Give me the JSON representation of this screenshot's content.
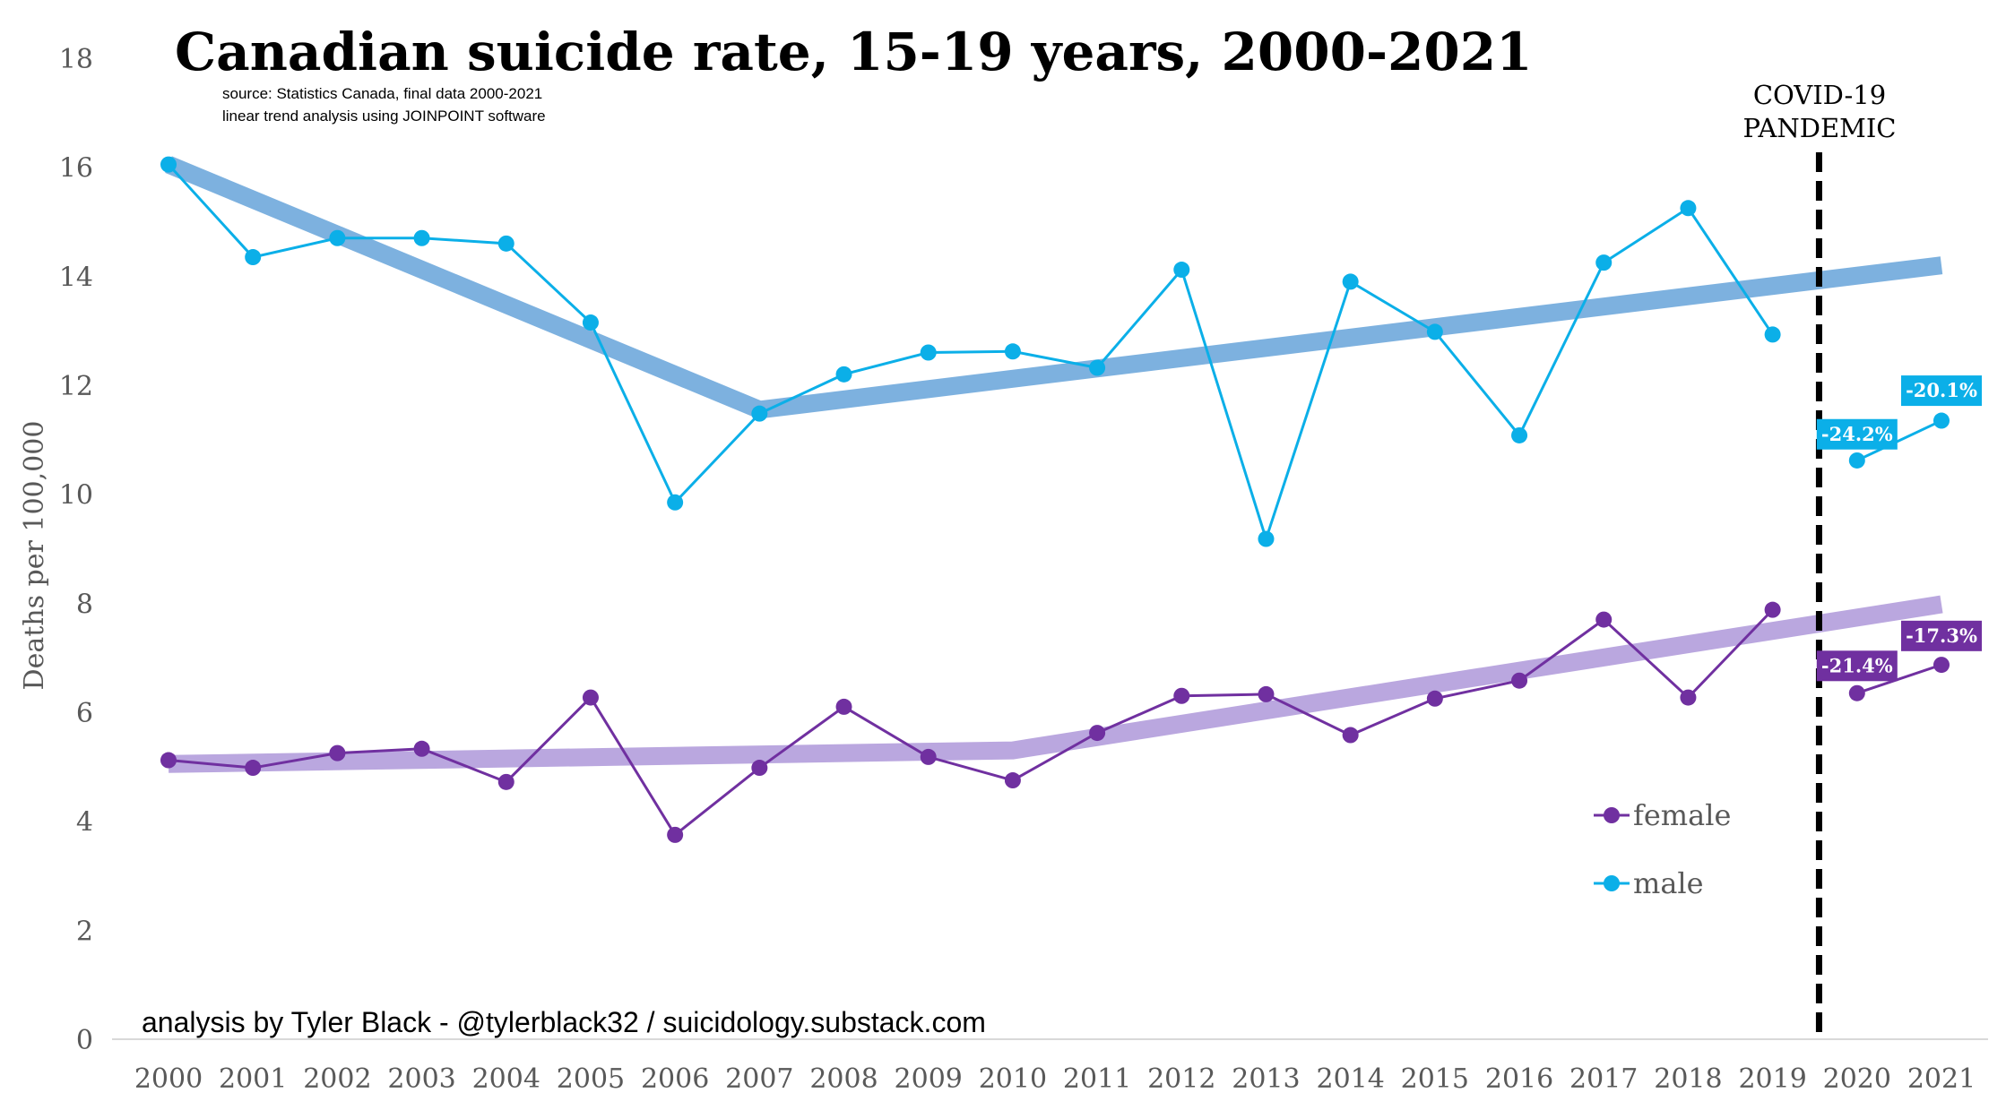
{
  "chart_data": {
    "type": "line",
    "title": "Canadian suicide rate, 15-19 years, 2000-2021",
    "source_lines": [
      "source: Statistics Canada, final data 2000-2021",
      "linear trend analysis using JOINPOINT software"
    ],
    "ylabel": "Deaths per 100,000",
    "xlabel": "",
    "ylim": [
      0,
      18
    ],
    "yticks": [
      0,
      2,
      4,
      6,
      8,
      10,
      12,
      14,
      16,
      18
    ],
    "x": [
      2000,
      2001,
      2002,
      2003,
      2004,
      2005,
      2006,
      2007,
      2008,
      2009,
      2010,
      2011,
      2012,
      2013,
      2014,
      2015,
      2016,
      2017,
      2018,
      2019,
      2020,
      2021
    ],
    "series": [
      {
        "name": "male",
        "color": "#0BAFE8",
        "values": [
          16.05,
          14.35,
          14.7,
          14.7,
          14.6,
          13.15,
          9.85,
          11.48,
          12.2,
          12.6,
          12.62,
          12.32,
          14.12,
          9.18,
          13.9,
          12.98,
          11.08,
          14.25,
          15.25,
          12.93,
          10.62,
          11.35
        ]
      },
      {
        "name": "female",
        "color": "#7030A0",
        "values": [
          5.12,
          4.98,
          5.25,
          5.33,
          4.72,
          6.27,
          3.75,
          4.98,
          6.1,
          5.18,
          4.75,
          5.62,
          6.3,
          6.33,
          5.58,
          6.25,
          6.58,
          7.7,
          6.27,
          7.88,
          6.35,
          6.87
        ]
      }
    ],
    "trends": [
      {
        "series": "male",
        "color": "#6FA8DC",
        "x": [
          2000,
          2007,
          2021
        ],
        "values": [
          16.05,
          11.55,
          14.2
        ]
      },
      {
        "series": "female",
        "color": "#B39DDB",
        "x": [
          2000,
          2010,
          2021
        ],
        "values": [
          5.05,
          5.3,
          7.98
        ]
      }
    ],
    "annotations": {
      "pandemic_label": [
        "COVID-19",
        "PANDEMIC"
      ],
      "pandemic_x": 2019.55,
      "badges": [
        {
          "text": "-24.2%",
          "x": 2020,
          "y": 11.1,
          "color": "#0BAFE8"
        },
        {
          "text": "-20.1%",
          "x": 2021,
          "y": 11.9,
          "color": "#0BAFE8"
        },
        {
          "text": "-21.4%",
          "x": 2020,
          "y": 6.85,
          "color": "#7030A0"
        },
        {
          "text": "-17.3%",
          "x": 2021,
          "y": 7.4,
          "color": "#7030A0"
        }
      ],
      "credit": "analysis by Tyler Black - @tylerblack32 / suicidology.substack.com"
    },
    "legend": {
      "placement": "bottom-right",
      "entries": [
        "female",
        "male"
      ]
    },
    "grid": false
  }
}
